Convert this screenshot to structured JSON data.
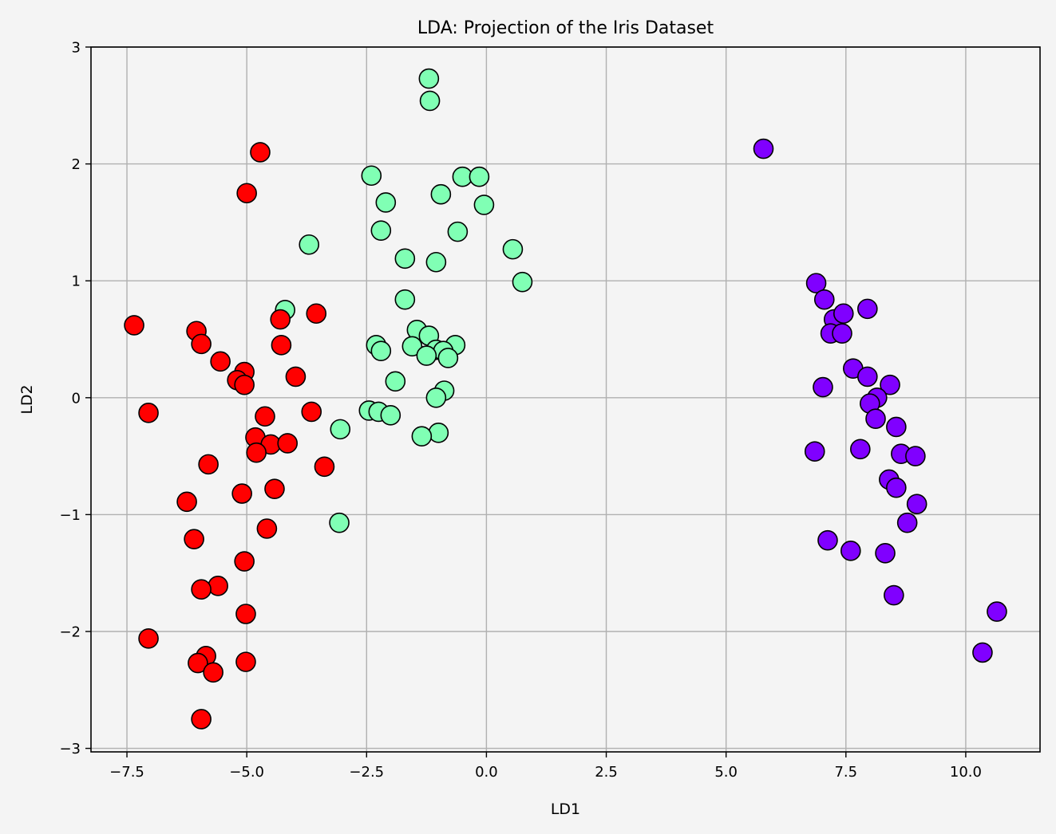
{
  "chart_data": {
    "type": "scatter",
    "title": "LDA: Projection of the Iris Dataset",
    "xlabel": "LD1",
    "ylabel": "LD2",
    "xlim": [
      -8.25,
      11.55
    ],
    "ylim": [
      -3.03,
      3.0
    ],
    "xticks": [
      -7.5,
      -5.0,
      -2.5,
      0.0,
      2.5,
      5.0,
      7.5,
      10.0
    ],
    "xtick_labels": [
      "−7.5",
      "−5.0",
      "−2.5",
      "0.0",
      "2.5",
      "5.0",
      "7.5",
      "10.0"
    ],
    "yticks": [
      -3,
      -2,
      -1,
      0,
      1,
      2,
      3
    ],
    "ytick_labels": [
      "−3",
      "−2",
      "−1",
      "0",
      "1",
      "2",
      "3"
    ],
    "grid": true,
    "series": [
      {
        "color": "#8000ff",
        "points": [
          [
            5.78,
            2.13
          ],
          [
            6.88,
            0.98
          ],
          [
            7.05,
            0.84
          ],
          [
            7.25,
            0.67
          ],
          [
            7.45,
            0.72
          ],
          [
            7.18,
            0.55
          ],
          [
            7.42,
            0.55
          ],
          [
            7.95,
            0.76
          ],
          [
            7.65,
            0.25
          ],
          [
            7.95,
            0.18
          ],
          [
            7.02,
            0.09
          ],
          [
            8.42,
            0.11
          ],
          [
            8.15,
            0.0
          ],
          [
            8.0,
            -0.05
          ],
          [
            8.12,
            -0.18
          ],
          [
            8.55,
            -0.25
          ],
          [
            6.85,
            -0.46
          ],
          [
            7.8,
            -0.44
          ],
          [
            8.65,
            -0.48
          ],
          [
            8.95,
            -0.5
          ],
          [
            8.4,
            -0.7
          ],
          [
            8.55,
            -0.77
          ],
          [
            8.98,
            -0.91
          ],
          [
            8.78,
            -1.07
          ],
          [
            7.12,
            -1.22
          ],
          [
            7.6,
            -1.31
          ],
          [
            8.32,
            -1.33
          ],
          [
            8.5,
            -1.69
          ],
          [
            10.65,
            -1.83
          ],
          [
            10.35,
            -2.18
          ]
        ]
      },
      {
        "color": "#80ffb4",
        "points": [
          [
            -1.2,
            2.73
          ],
          [
            -1.18,
            2.54
          ],
          [
            -2.4,
            1.9
          ],
          [
            -0.5,
            1.89
          ],
          [
            -0.15,
            1.89
          ],
          [
            -0.05,
            1.65
          ],
          [
            -2.1,
            1.67
          ],
          [
            -0.95,
            1.74
          ],
          [
            -2.2,
            1.43
          ],
          [
            -0.6,
            1.42
          ],
          [
            -3.7,
            1.31
          ],
          [
            0.55,
            1.27
          ],
          [
            -1.7,
            1.19
          ],
          [
            -1.05,
            1.16
          ],
          [
            0.75,
            0.99
          ],
          [
            -1.7,
            0.84
          ],
          [
            -4.2,
            0.75
          ],
          [
            -1.45,
            0.58
          ],
          [
            -1.2,
            0.53
          ],
          [
            -2.3,
            0.45
          ],
          [
            -1.55,
            0.44
          ],
          [
            -0.65,
            0.45
          ],
          [
            -2.2,
            0.4
          ],
          [
            -1.05,
            0.41
          ],
          [
            -0.9,
            0.4
          ],
          [
            -1.25,
            0.36
          ],
          [
            -0.8,
            0.34
          ],
          [
            -1.9,
            0.14
          ],
          [
            -0.88,
            0.06
          ],
          [
            -1.05,
            0.0
          ],
          [
            -2.45,
            -0.11
          ],
          [
            -2.25,
            -0.12
          ],
          [
            -2.0,
            -0.15
          ],
          [
            -3.05,
            -0.27
          ],
          [
            -1.0,
            -0.3
          ],
          [
            -1.35,
            -0.33
          ],
          [
            -3.07,
            -1.07
          ]
        ]
      },
      {
        "color": "#ff0000",
        "points": [
          [
            -4.72,
            2.1
          ],
          [
            -5.0,
            1.75
          ],
          [
            -3.55,
            0.72
          ],
          [
            -7.35,
            0.62
          ],
          [
            -4.3,
            0.67
          ],
          [
            -6.05,
            0.57
          ],
          [
            -5.95,
            0.46
          ],
          [
            -4.28,
            0.45
          ],
          [
            -5.55,
            0.31
          ],
          [
            -5.05,
            0.22
          ],
          [
            -5.2,
            0.15
          ],
          [
            -5.05,
            0.11
          ],
          [
            -3.98,
            0.18
          ],
          [
            -7.05,
            -0.13
          ],
          [
            -4.62,
            -0.16
          ],
          [
            -3.65,
            -0.12
          ],
          [
            -4.82,
            -0.34
          ],
          [
            -4.5,
            -0.4
          ],
          [
            -4.15,
            -0.39
          ],
          [
            -4.8,
            -0.47
          ],
          [
            -5.8,
            -0.57
          ],
          [
            -3.38,
            -0.59
          ],
          [
            -4.42,
            -0.78
          ],
          [
            -5.1,
            -0.82
          ],
          [
            -6.25,
            -0.89
          ],
          [
            -4.58,
            -1.12
          ],
          [
            -6.1,
            -1.21
          ],
          [
            -5.05,
            -1.4
          ],
          [
            -5.6,
            -1.61
          ],
          [
            -5.95,
            -1.64
          ],
          [
            -5.02,
            -1.85
          ],
          [
            -7.05,
            -2.06
          ],
          [
            -5.85,
            -2.21
          ],
          [
            -5.02,
            -2.26
          ],
          [
            -6.02,
            -2.27
          ],
          [
            -5.7,
            -2.35
          ],
          [
            -5.95,
            -2.75
          ]
        ]
      }
    ]
  }
}
